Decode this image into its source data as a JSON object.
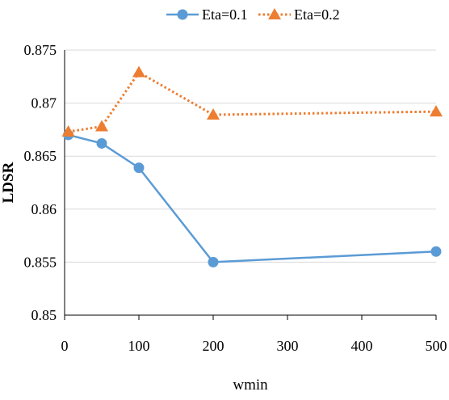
{
  "chart_data": {
    "type": "line",
    "xlabel": "wmin",
    "ylabel": "LDSR",
    "xlim": [
      0,
      500
    ],
    "ylim": [
      0.85,
      0.875
    ],
    "x_ticks": [
      0,
      100,
      200,
      300,
      400,
      500
    ],
    "x_tick_labels": [
      "0",
      "100",
      "200",
      "300",
      "400",
      "500"
    ],
    "y_ticks": [
      0.85,
      0.855,
      0.86,
      0.865,
      0.87,
      0.875
    ],
    "y_tick_labels": [
      "0.85",
      "0.855",
      "0.86",
      "0.865",
      "0.87",
      "0.875"
    ],
    "grid": "horizontal",
    "legend_position": "top",
    "series": [
      {
        "name": "Eta=0.1",
        "color": "#5b9bd5",
        "line_style": "solid",
        "marker": "circle",
        "x": [
          5,
          50,
          100,
          200,
          500
        ],
        "values": [
          0.867,
          0.8662,
          0.8639,
          0.855,
          0.856
        ]
      },
      {
        "name": "Eta=0.2",
        "color": "#ed7d31",
        "line_style": "dotted",
        "marker": "triangle",
        "x": [
          5,
          50,
          100,
          200,
          500
        ],
        "values": [
          0.8673,
          0.8678,
          0.8729,
          0.8689,
          0.8692
        ]
      }
    ]
  }
}
